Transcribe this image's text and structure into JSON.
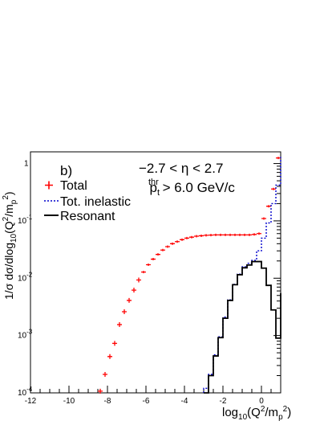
{
  "chart_data": {
    "type": "line",
    "panel_label": "b)",
    "annotations": [
      "−2.7 < η < 2.7",
      "p_t^thr > 6.0 GeV/c"
    ],
    "xlabel": "log10(Q^2/m_p^2)",
    "ylabel": "1/σ dσ/dlog10(Q^2/m_p^2)",
    "log_y": true,
    "xlim": [
      -12,
      1
    ],
    "ylim": [
      0.0001,
      1.6
    ],
    "x_ticks": [
      -12,
      -10,
      -8,
      -6,
      -4,
      -2,
      0
    ],
    "x_tick_labels": [
      "-12",
      "-10",
      "-8",
      "-6",
      "-4",
      "-2",
      "0"
    ],
    "y_ticks": [
      0.0001,
      0.001,
      0.01,
      0.1,
      1
    ],
    "y_tick_labels": [
      {
        "base": "10",
        "exp": "-4"
      },
      {
        "base": "10",
        "exp": "-3"
      },
      {
        "base": "10",
        "exp": "-2"
      },
      {
        "base": "10",
        "exp": "-1"
      },
      {
        "base": "1",
        "exp": ""
      }
    ],
    "legend_position": "upper-left",
    "series": [
      {
        "name": "Total",
        "style": "markers",
        "color": "#ff0000",
        "bin_width": 0.25,
        "points": [
          [
            -8.375,
            0.000107
          ],
          [
            -8.125,
            0.00021
          ],
          [
            -7.875,
            0.00043
          ],
          [
            -7.625,
            0.00073
          ],
          [
            -7.375,
            0.00155
          ],
          [
            -7.125,
            0.0026
          ],
          [
            -6.875,
            0.0041
          ],
          [
            -6.625,
            0.0062
          ],
          [
            -6.375,
            0.0093
          ],
          [
            -6.125,
            0.0128
          ],
          [
            -5.875,
            0.0172
          ],
          [
            -5.625,
            0.0215
          ],
          [
            -5.375,
            0.026
          ],
          [
            -5.125,
            0.031
          ],
          [
            -4.875,
            0.0355
          ],
          [
            -4.625,
            0.04
          ],
          [
            -4.375,
            0.0435
          ],
          [
            -4.125,
            0.047
          ],
          [
            -3.875,
            0.05
          ],
          [
            -3.625,
            0.052
          ],
          [
            -3.375,
            0.054
          ],
          [
            -3.125,
            0.055
          ],
          [
            -2.875,
            0.056
          ],
          [
            -2.625,
            0.0565
          ],
          [
            -2.375,
            0.057
          ],
          [
            -2.125,
            0.057
          ],
          [
            -1.875,
            0.057
          ],
          [
            -1.625,
            0.057
          ],
          [
            -1.375,
            0.057
          ],
          [
            -1.125,
            0.057
          ],
          [
            -0.875,
            0.057
          ],
          [
            -0.625,
            0.057
          ],
          [
            -0.375,
            0.058
          ],
          [
            -0.125,
            0.06
          ],
          [
            0.125,
            0.11
          ],
          [
            0.375,
            0.18
          ],
          [
            0.625,
            0.36
          ],
          [
            0.875,
            1.25
          ]
        ]
      },
      {
        "name": "Tot. inelastic",
        "style": "dashed-step",
        "color": "#0000cc",
        "edges": [
          -3.0,
          -2.75,
          -2.5,
          -2.25,
          -2.0,
          -1.75,
          -1.5,
          -1.25,
          -1.0,
          -0.75,
          -0.5,
          -0.25,
          0.0,
          0.25,
          0.5,
          0.75,
          1.0
        ],
        "values": [
          0.00012,
          0.00021,
          0.00046,
          0.00095,
          0.0021,
          0.0042,
          0.0078,
          0.0118,
          0.0158,
          0.0182,
          0.0205,
          0.03,
          0.05,
          0.092,
          0.2,
          0.42,
          1.3
        ]
      },
      {
        "name": "Resonant",
        "style": "solid-step",
        "color": "#000000",
        "edges": [
          -3.0,
          -2.75,
          -2.5,
          -2.25,
          -2.0,
          -1.75,
          -1.5,
          -1.25,
          -1.0,
          -0.75,
          -0.5,
          -0.25,
          0.0,
          0.25,
          0.5,
          0.75,
          1.0
        ],
        "values": [
          0.0001,
          0.0002,
          0.00044,
          0.00092,
          0.002,
          0.0041,
          0.0077,
          0.0115,
          0.0152,
          0.017,
          0.0195,
          0.0195,
          0.015,
          0.0075,
          0.0028,
          0.0009,
          0.0055
        ]
      }
    ]
  }
}
